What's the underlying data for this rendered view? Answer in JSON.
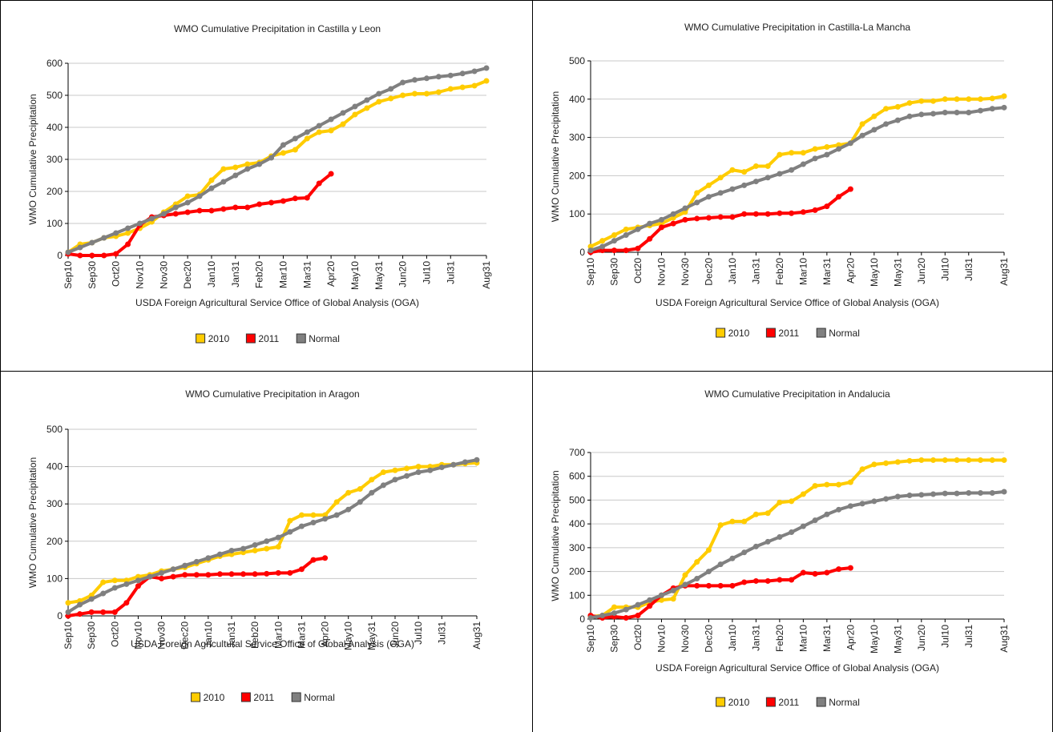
{
  "chart_data": [
    {
      "type": "line",
      "title": "WMO Cumulative Precipitation in Castilla y Leon",
      "x_label": "USDA Foreign Agricultural Service Office of Global Analysis (OGA)",
      "y_label": "WMO Cumulative Precipitation",
      "categories": [
        "Sep10",
        null,
        "Sep30",
        null,
        "Oct20",
        null,
        "Nov10",
        null,
        "Nov30",
        null,
        "Dec20",
        null,
        "Jan10",
        null,
        "Jan31",
        null,
        "Feb20",
        null,
        "Mar10",
        null,
        "Mar31",
        null,
        "Apr20",
        null,
        "May10",
        null,
        "May31",
        null,
        "Jun20",
        null,
        "Jul10",
        null,
        "Jul31",
        null,
        null,
        "Aug31"
      ],
      "series": [
        {
          "name": "2010",
          "color": "#ffcc00",
          "values": [
            10,
            35,
            40,
            55,
            60,
            70,
            85,
            105,
            135,
            160,
            185,
            190,
            235,
            270,
            275,
            285,
            290,
            310,
            320,
            330,
            365,
            385,
            390,
            410,
            440,
            460,
            480,
            490,
            500,
            505,
            505,
            510,
            520,
            525,
            530,
            545
          ]
        },
        {
          "name": "2011",
          "color": "#ff0000",
          "values": [
            5,
            0,
            0,
            0,
            5,
            35,
            95,
            120,
            125,
            130,
            135,
            140,
            140,
            145,
            150,
            150,
            160,
            165,
            170,
            178,
            180,
            225,
            255,
            null,
            null,
            null,
            null,
            null,
            null,
            null,
            null,
            null,
            null,
            null,
            null,
            null
          ]
        },
        {
          "name": "Normal",
          "color": "#808080",
          "values": [
            10,
            25,
            40,
            55,
            70,
            85,
            100,
            115,
            130,
            150,
            165,
            185,
            210,
            230,
            250,
            270,
            285,
            305,
            345,
            365,
            385,
            405,
            425,
            445,
            465,
            485,
            505,
            520,
            540,
            548,
            553,
            558,
            562,
            568,
            575,
            585
          ]
        }
      ],
      "ylim": [
        0,
        600
      ],
      "yticks": [
        0,
        100,
        200,
        300,
        400,
        500,
        600
      ],
      "grid": true,
      "legend": "bottom"
    },
    {
      "type": "line",
      "title": "WMO Cumulative Precipitation in Castilla-La Mancha",
      "x_label": "USDA Foreign Agricultural Service Office of Global Analysis (OGA)",
      "y_label": "WMO Cumulative Precipitation",
      "categories": [
        "Sep10",
        null,
        "Sep30",
        null,
        "Oct20",
        null,
        "Nov10",
        null,
        "Nov30",
        null,
        "Dec20",
        null,
        "Jan10",
        null,
        "Jan31",
        null,
        "Feb20",
        null,
        "Mar10",
        null,
        "Mar31",
        null,
        "Apr20",
        null,
        "May10",
        null,
        "May31",
        null,
        "Jun20",
        null,
        "Jul10",
        null,
        "Jul31",
        null,
        null,
        "Aug31"
      ],
      "series": [
        {
          "name": "2010",
          "color": "#ffcc00",
          "values": [
            15,
            30,
            45,
            60,
            65,
            70,
            75,
            90,
            105,
            155,
            175,
            195,
            215,
            210,
            225,
            225,
            255,
            260,
            260,
            270,
            275,
            280,
            285,
            335,
            355,
            375,
            380,
            390,
            395,
            395,
            400,
            400,
            400,
            400,
            402,
            408
          ]
        },
        {
          "name": "2011",
          "color": "#ff0000",
          "values": [
            0,
            5,
            5,
            5,
            10,
            35,
            65,
            75,
            85,
            88,
            90,
            92,
            92,
            100,
            100,
            100,
            102,
            102,
            105,
            110,
            120,
            145,
            165,
            null,
            null,
            null,
            null,
            null,
            null,
            null,
            null,
            null,
            null,
            null,
            null,
            null
          ]
        },
        {
          "name": "Normal",
          "color": "#808080",
          "values": [
            5,
            15,
            30,
            45,
            60,
            75,
            85,
            100,
            115,
            130,
            145,
            155,
            165,
            175,
            185,
            195,
            205,
            215,
            230,
            245,
            255,
            270,
            285,
            305,
            320,
            335,
            345,
            355,
            360,
            362,
            365,
            365,
            365,
            370,
            375,
            378
          ]
        }
      ],
      "ylim": [
        0,
        500
      ],
      "yticks": [
        0,
        100,
        200,
        300,
        400,
        500
      ],
      "grid": true,
      "legend": "bottom"
    },
    {
      "type": "line",
      "title": "WMO Cumulative Precipitation in Aragon",
      "x_label": "USDA Foreign Agricultural Service Office of Global Analysis (OGA)",
      "y_label": "WMO Cumulative Precipitation",
      "categories": [
        "Sep10",
        null,
        "Sep30",
        null,
        "Oct20",
        null,
        "Nov10",
        null,
        "Nov30",
        null,
        "Dec20",
        null,
        "Jan10",
        null,
        "Jan31",
        null,
        "Feb20",
        null,
        "Mar10",
        null,
        "Mar31",
        null,
        "Apr20",
        null,
        "May10",
        null,
        "May31",
        null,
        "Jun20",
        null,
        "Jul10",
        null,
        "Jul31",
        null,
        null,
        "Aug31"
      ],
      "series": [
        {
          "name": "2010",
          "color": "#ffcc00",
          "values": [
            35,
            40,
            55,
            90,
            95,
            95,
            105,
            110,
            120,
            125,
            130,
            140,
            150,
            160,
            165,
            170,
            175,
            180,
            185,
            255,
            270,
            270,
            270,
            305,
            330,
            340,
            365,
            385,
            390,
            395,
            400,
            400,
            405,
            405,
            408,
            410
          ]
        },
        {
          "name": "2011",
          "color": "#ff0000",
          "values": [
            0,
            5,
            10,
            10,
            10,
            35,
            80,
            105,
            100,
            105,
            110,
            110,
            110,
            112,
            112,
            112,
            112,
            113,
            115,
            115,
            125,
            150,
            155,
            null,
            null,
            null,
            null,
            null,
            null,
            null,
            null,
            null,
            null,
            null,
            null,
            null
          ]
        },
        {
          "name": "Normal",
          "color": "#808080",
          "values": [
            10,
            30,
            45,
            60,
            75,
            85,
            95,
            105,
            115,
            125,
            135,
            145,
            155,
            165,
            175,
            180,
            190,
            200,
            210,
            225,
            240,
            250,
            260,
            270,
            285,
            305,
            330,
            350,
            365,
            375,
            385,
            390,
            398,
            405,
            412,
            418
          ]
        }
      ],
      "ylim": [
        0,
        500
      ],
      "yticks": [
        0,
        100,
        200,
        300,
        400,
        500
      ],
      "grid": true,
      "legend": "bottom"
    },
    {
      "type": "line",
      "title": "WMO Cumulative Precipitation in Andalucia",
      "x_label": "USDA Foreign Agricultural Service Office of Global Analysis (OGA)",
      "y_label": "WMO Cumulative Precipitation",
      "categories": [
        "Sep10",
        null,
        "Sep30",
        null,
        "Oct20",
        null,
        "Nov10",
        null,
        "Nov30",
        null,
        "Dec20",
        null,
        "Jan10",
        null,
        "Jan31",
        null,
        "Feb20",
        null,
        "Mar10",
        null,
        "Mar31",
        null,
        "Apr20",
        null,
        "May10",
        null,
        "May31",
        null,
        "Jun20",
        null,
        "Jul10",
        null,
        "Jul31",
        null,
        null,
        "Aug31"
      ],
      "series": [
        {
          "name": "2010",
          "color": "#ffcc00",
          "values": [
            10,
            15,
            50,
            50,
            50,
            70,
            80,
            85,
            185,
            240,
            290,
            395,
            410,
            410,
            440,
            445,
            490,
            495,
            525,
            560,
            565,
            565,
            575,
            630,
            650,
            655,
            660,
            665,
            668,
            668,
            668,
            668,
            668,
            668,
            668,
            668
          ]
        },
        {
          "name": "2011",
          "color": "#ff0000",
          "values": [
            15,
            5,
            10,
            5,
            15,
            55,
            100,
            130,
            140,
            140,
            140,
            140,
            140,
            155,
            160,
            160,
            165,
            165,
            195,
            190,
            195,
            210,
            215,
            null,
            null,
            null,
            null,
            null,
            null,
            null,
            null,
            null,
            null,
            null,
            null,
            null
          ]
        },
        {
          "name": "Normal",
          "color": "#808080",
          "values": [
            5,
            15,
            25,
            40,
            60,
            80,
            100,
            120,
            145,
            170,
            200,
            230,
            255,
            280,
            305,
            325,
            345,
            365,
            390,
            415,
            440,
            460,
            475,
            485,
            495,
            505,
            515,
            520,
            522,
            525,
            528,
            528,
            530,
            530,
            530,
            535
          ]
        }
      ],
      "ylim": [
        0,
        700
      ],
      "yticks": [
        0,
        100,
        200,
        300,
        400,
        500,
        600,
        700
      ],
      "grid": true,
      "legend": "bottom"
    }
  ]
}
